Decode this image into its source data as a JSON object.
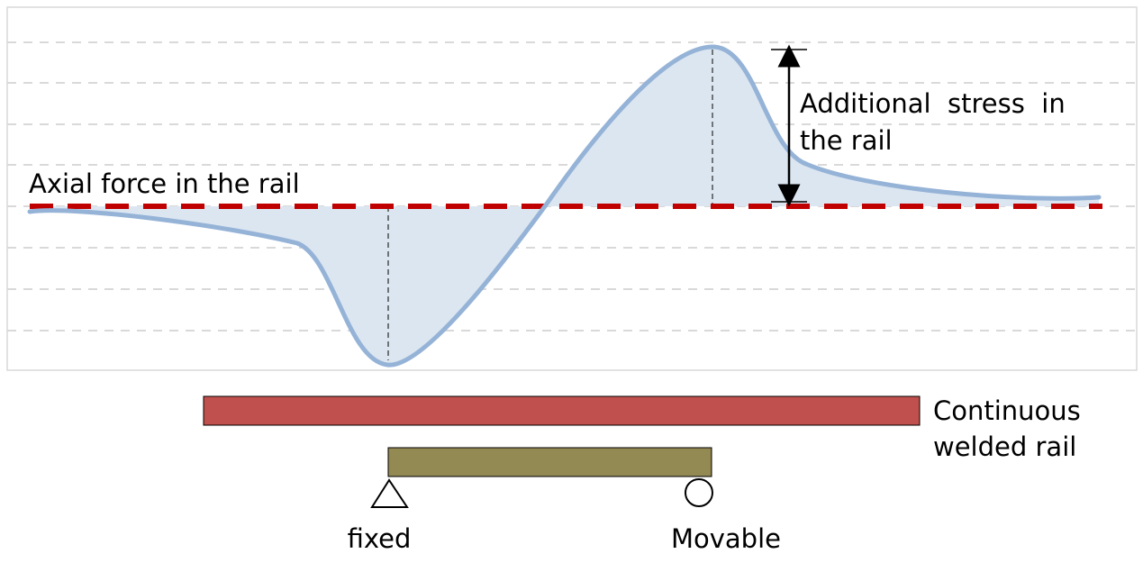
{
  "labels": {
    "axial_force": "Axial force in the rail",
    "additional_stress_line1": "Additional  stress  in",
    "additional_stress_line2": "the rail",
    "rail_line1": "Continuous",
    "rail_line2": "welded rail",
    "fixed": "fixed",
    "movable": "Movable"
  },
  "colors": {
    "curve": "#95b3d7",
    "fill": "#dce6f1",
    "axial_line": "#c00000",
    "rail": "#c0504d",
    "bridge": "#938953",
    "grid": "#d9d9d9"
  },
  "icons": {
    "fixed_support": "triangle",
    "movable_support": "circle"
  }
}
